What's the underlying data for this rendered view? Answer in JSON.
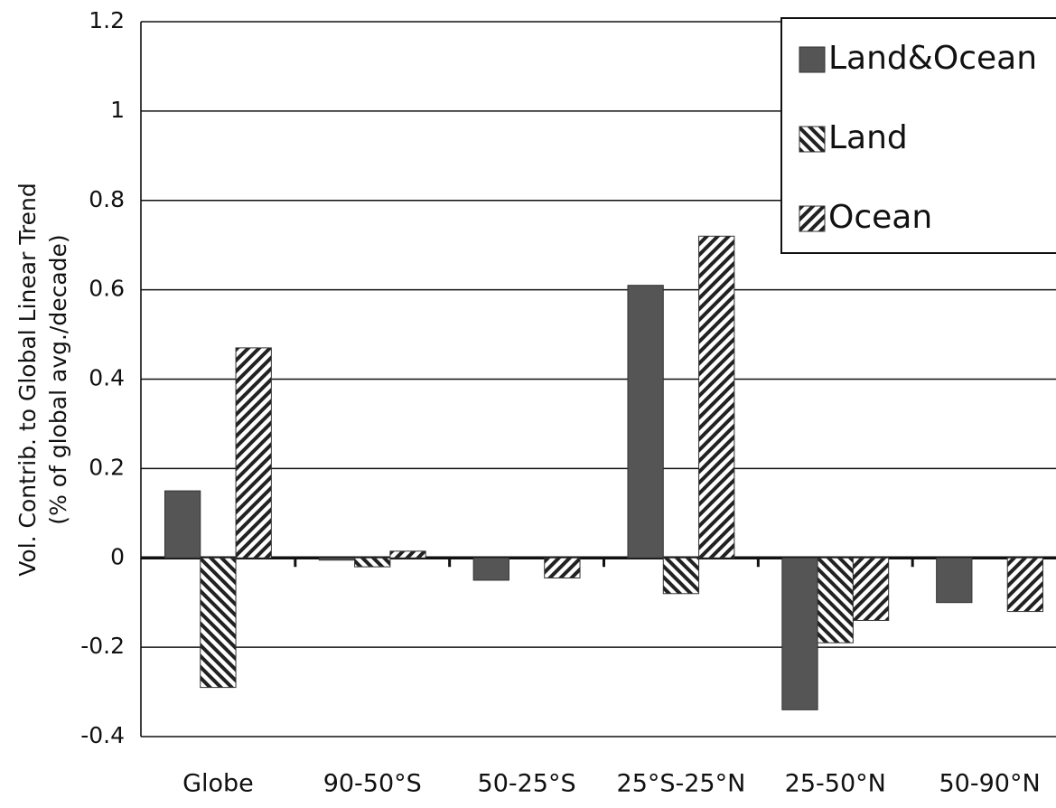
{
  "chart_data": {
    "type": "bar",
    "ylabel": [
      "Vol. Contrib. to Global Linear Trend",
      "(% of global avg./decade)"
    ],
    "categories": [
      "Globe",
      "90-50°S",
      "50-25°S",
      "25°S-25°N",
      "25-50°N",
      "50-90°N"
    ],
    "series": [
      {
        "name": "Land&Ocean",
        "color": "#555555",
        "pattern": "solid",
        "values": [
          0.15,
          -0.005,
          -0.05,
          0.61,
          -0.34,
          -0.1
        ]
      },
      {
        "name": "Land",
        "color": "#222222",
        "pattern": "back-diagonal",
        "values": [
          -0.29,
          -0.02,
          0,
          -0.08,
          -0.19,
          0
        ]
      },
      {
        "name": "Ocean",
        "color": "#222222",
        "pattern": "diagonal",
        "values": [
          0.47,
          0.015,
          -0.045,
          0.72,
          -0.14,
          -0.12
        ]
      }
    ],
    "ylim": [
      -0.4,
      1.2
    ],
    "yticks": [
      -0.4,
      -0.2,
      0,
      0.2,
      0.4,
      0.6,
      0.8,
      1,
      1.2
    ],
    "grid": true,
    "legend": "upper right"
  }
}
